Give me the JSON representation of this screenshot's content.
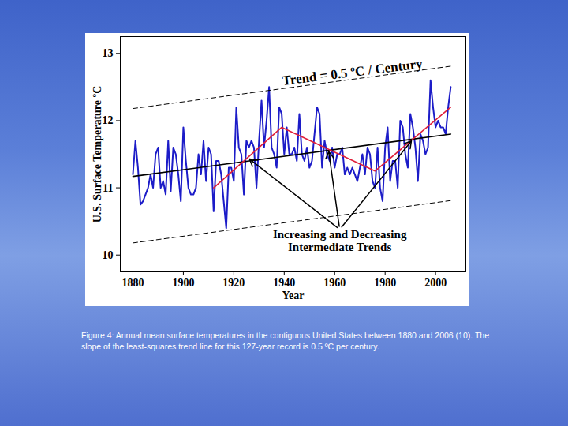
{
  "chart_data": {
    "type": "line",
    "x_label": "Year",
    "y_label": "U.S. Surface Temperature ºC",
    "caption": "Figure 4: Annual mean surface temperatures in the contiguous United States between 1880 and 2006 (10). The slope of the least-squares trend line for this 127-year record is 0.5 ºC per century.",
    "x": [
      1880,
      1881,
      1882,
      1883,
      1884,
      1885,
      1886,
      1887,
      1888,
      1889,
      1890,
      1891,
      1892,
      1893,
      1894,
      1895,
      1896,
      1897,
      1898,
      1899,
      1900,
      1901,
      1902,
      1903,
      1904,
      1905,
      1906,
      1907,
      1908,
      1909,
      1910,
      1911,
      1912,
      1913,
      1914,
      1915,
      1916,
      1917,
      1918,
      1919,
      1920,
      1921,
      1922,
      1923,
      1924,
      1925,
      1926,
      1927,
      1928,
      1929,
      1930,
      1931,
      1932,
      1933,
      1934,
      1935,
      1936,
      1937,
      1938,
      1939,
      1940,
      1941,
      1942,
      1943,
      1944,
      1945,
      1946,
      1947,
      1948,
      1949,
      1950,
      1951,
      1952,
      1953,
      1954,
      1955,
      1956,
      1957,
      1958,
      1959,
      1960,
      1961,
      1962,
      1963,
      1964,
      1965,
      1966,
      1967,
      1968,
      1969,
      1970,
      1971,
      1972,
      1973,
      1974,
      1975,
      1976,
      1977,
      1978,
      1979,
      1980,
      1981,
      1982,
      1983,
      1984,
      1985,
      1986,
      1987,
      1988,
      1989,
      1990,
      1991,
      1992,
      1993,
      1994,
      1995,
      1996,
      1997,
      1998,
      1999,
      2000,
      2001,
      2002,
      2003,
      2004,
      2005,
      2006
    ],
    "series": [
      {
        "color": "#1c1cc8",
        "line_style": "solid",
        "values": [
          11.2,
          11.7,
          11.3,
          10.75,
          10.8,
          10.9,
          11.0,
          11.2,
          11.0,
          11.5,
          11.6,
          11.0,
          11.1,
          10.9,
          11.7,
          10.95,
          11.6,
          11.5,
          11.2,
          10.8,
          11.9,
          11.4,
          11.0,
          10.9,
          10.9,
          11.0,
          11.5,
          11.2,
          11.7,
          11.1,
          11.6,
          11.5,
          10.65,
          11.4,
          11.4,
          11.2,
          10.8,
          10.4,
          11.3,
          11.3,
          11.1,
          12.2,
          11.6,
          11.5,
          10.9,
          11.7,
          11.6,
          11.7,
          11.6,
          11.0,
          11.7,
          12.3,
          11.6,
          12.0,
          12.5,
          11.6,
          11.5,
          11.3,
          12.2,
          12.1,
          11.5,
          11.9,
          11.5,
          11.5,
          11.6,
          11.4,
          12.1,
          11.5,
          11.4,
          11.6,
          11.3,
          11.4,
          11.8,
          12.2,
          12.1,
          11.3,
          11.7,
          11.5,
          11.4,
          11.6,
          11.3,
          11.5,
          11.5,
          11.6,
          11.2,
          11.3,
          11.2,
          11.3,
          11.2,
          11.1,
          11.3,
          11.5,
          11.2,
          11.6,
          11.5,
          11.1,
          11.0,
          11.6,
          11.0,
          10.8,
          11.6,
          11.9,
          11.1,
          11.4,
          11.4,
          11.0,
          12.0,
          11.9,
          11.5,
          11.3,
          12.1,
          11.9,
          11.6,
          11.1,
          11.8,
          11.7,
          11.5,
          11.6,
          12.6,
          12.2,
          11.9,
          12.0,
          11.9,
          11.9,
          11.8,
          12.2,
          12.5
        ]
      },
      {
        "color": "#000000",
        "line_style": "solid",
        "x": [
          1880,
          2006
        ],
        "values": [
          11.17,
          11.8
        ]
      },
      {
        "color": "#000000",
        "line_style": "dashed",
        "x": [
          1880,
          2006
        ],
        "values": [
          12.18,
          12.81
        ]
      },
      {
        "color": "#000000",
        "line_style": "dashed",
        "x": [
          1880,
          2006
        ],
        "values": [
          10.18,
          10.81
        ]
      },
      {
        "color": "#e0203a",
        "line_style": "solid",
        "x": [
          1912,
          1939,
          1976,
          2006
        ],
        "values": [
          11.0,
          11.9,
          11.25,
          12.2
        ]
      }
    ],
    "annotations": [
      {
        "text": [
          "Trend = 0.5 ºC / Century"
        ],
        "x": 1967,
        "y": 12.72
      },
      {
        "text": [
          "Increasing and Decreasing",
          "Intermediate Trends"
        ],
        "x": 1962,
        "y": 10.38,
        "arrows": true
      }
    ],
    "xlim": [
      1875,
      2012
    ],
    "ylim": [
      9.75,
      13.25
    ],
    "xticks": [
      1880,
      1900,
      1920,
      1940,
      1960,
      1980,
      2000
    ],
    "yticks": [
      10,
      11,
      12,
      13
    ],
    "grid": false
  }
}
